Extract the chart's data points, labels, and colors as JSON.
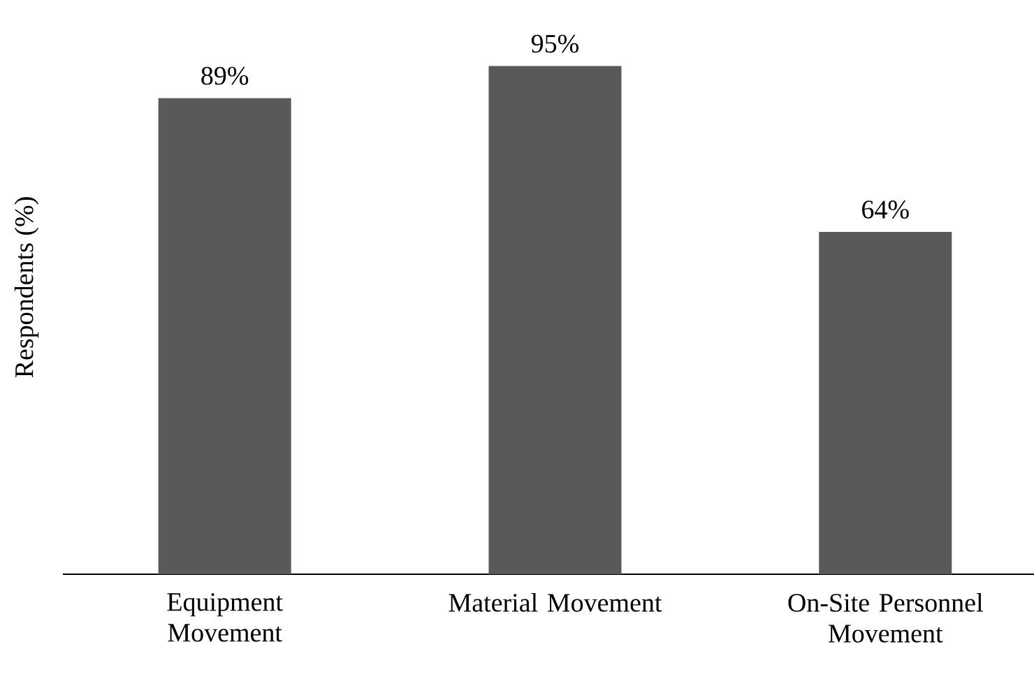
{
  "chart_data": {
    "type": "bar",
    "ylabel": "Respondents (%)",
    "categories": [
      "Equipment Movement",
      "Material Movement",
      "On-Site Personnel Movement"
    ],
    "values": [
      89,
      95,
      64
    ],
    "value_labels": [
      "89%",
      "95%",
      "64%"
    ],
    "color": "#595959"
  }
}
